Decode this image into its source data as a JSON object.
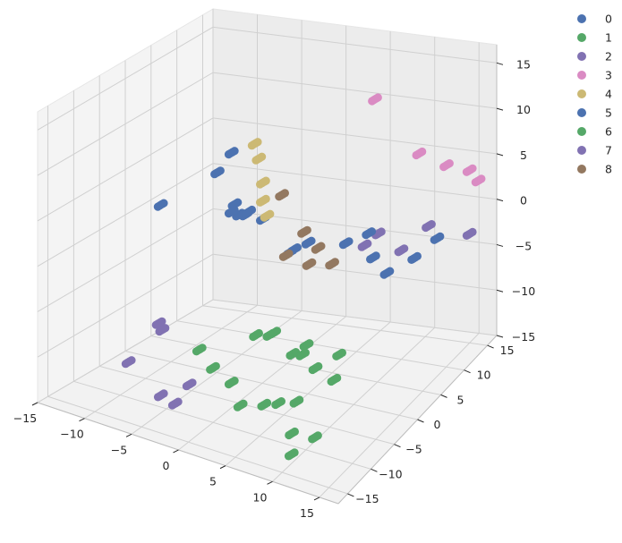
{
  "chart_data": {
    "type": "scatter",
    "title": "",
    "xlabel": "",
    "ylabel": "",
    "zlabel": "",
    "xlim": [
      -15,
      17
    ],
    "ylim": [
      -17,
      17
    ],
    "zlim": [
      -15,
      17
    ],
    "x_ticks": [
      "−15",
      "−10",
      "−5",
      "0",
      "5",
      "10",
      "15"
    ],
    "y_ticks": [
      "−15",
      "−10",
      "−5",
      "0",
      "5",
      "10",
      "15"
    ],
    "z_ticks": [
      "−15",
      "−10",
      "−5",
      "0",
      "5",
      "10",
      "15"
    ],
    "grid": true,
    "legend_position": "top-right",
    "series": [
      {
        "name": "0",
        "color": "#4c72b0",
        "points": [
          [
            -2,
            1,
            3
          ],
          [
            -3,
            0,
            4
          ],
          [
            -1,
            2,
            2
          ],
          [
            -2,
            -1,
            3.5
          ],
          [
            2,
            2,
            -1
          ],
          [
            3,
            1,
            0
          ],
          [
            4,
            2,
            0.5
          ],
          [
            -4,
            4,
            1
          ],
          [
            -5,
            3,
            1.5
          ]
        ]
      },
      {
        "name": "1",
        "color": "#55a868",
        "points": [
          [
            2,
            -5,
            -7
          ],
          [
            4,
            -6,
            -6
          ],
          [
            6,
            -5,
            -8
          ],
          [
            5,
            -7,
            -5
          ],
          [
            8,
            -6,
            -6
          ],
          [
            10,
            -8,
            -7
          ],
          [
            6,
            -3,
            -9
          ],
          [
            10,
            -3,
            -8
          ],
          [
            5,
            -9,
            -12
          ],
          [
            9,
            -10,
            -10
          ],
          [
            11,
            -6,
            -9
          ]
        ]
      },
      {
        "name": "2",
        "color": "#8172b2",
        "points": [
          [
            -6,
            -9,
            -7
          ],
          [
            -8,
            -6,
            -8
          ],
          [
            7,
            8,
            -2
          ],
          [
            8,
            9,
            -1
          ],
          [
            10,
            10,
            -3
          ],
          [
            12,
            12,
            -1
          ],
          [
            15,
            15,
            -3
          ]
        ]
      },
      {
        "name": "3",
        "color": "#da8bc3",
        "points": [
          [
            6,
            12,
            12
          ],
          [
            12,
            10,
            8
          ],
          [
            14,
            12,
            6
          ],
          [
            15,
            15,
            4
          ],
          [
            16,
            15,
            3
          ]
        ]
      },
      {
        "name": "4",
        "color": "#ccb974",
        "points": [
          [
            -3,
            4,
            9
          ],
          [
            -2,
            3,
            8
          ],
          [
            -1,
            2,
            6
          ],
          [
            0,
            1,
            3
          ],
          [
            -1,
            2,
            4
          ]
        ]
      },
      {
        "name": "5",
        "color": "#4c72b0",
        "points": [
          [
            -10,
            -2,
            3
          ],
          [
            -6,
            2,
            6
          ],
          [
            -5,
            3,
            8
          ],
          [
            6,
            6,
            -1
          ],
          [
            8,
            7,
            0
          ],
          [
            9,
            6,
            -2
          ],
          [
            10,
            7,
            -4
          ],
          [
            12,
            9,
            -3
          ],
          [
            14,
            10,
            -1
          ]
        ]
      },
      {
        "name": "6",
        "color": "#55a868",
        "points": [
          [
            -2,
            -9,
            -8
          ],
          [
            0,
            -10,
            -9
          ],
          [
            2,
            -10,
            -10
          ],
          [
            4,
            -12,
            -11
          ],
          [
            6,
            -8,
            -12
          ],
          [
            9,
            -11,
            -13
          ],
          [
            10,
            -13,
            -14
          ],
          [
            12,
            -12,
            -12
          ]
        ]
      },
      {
        "name": "7",
        "color": "#8172b2",
        "points": [
          [
            -8,
            -12,
            -10
          ],
          [
            -4,
            -13,
            -12
          ],
          [
            -3,
            -12,
            -13
          ],
          [
            -2,
            -11,
            -11
          ]
        ]
      },
      {
        "name": "8",
        "color": "#937860",
        "points": [
          [
            0,
            4,
            4
          ],
          [
            3,
            3,
            1
          ],
          [
            4,
            4,
            -1
          ],
          [
            1,
            3,
            -2
          ],
          [
            3,
            4,
            -3
          ],
          [
            5,
            5,
            -3
          ]
        ]
      }
    ]
  }
}
